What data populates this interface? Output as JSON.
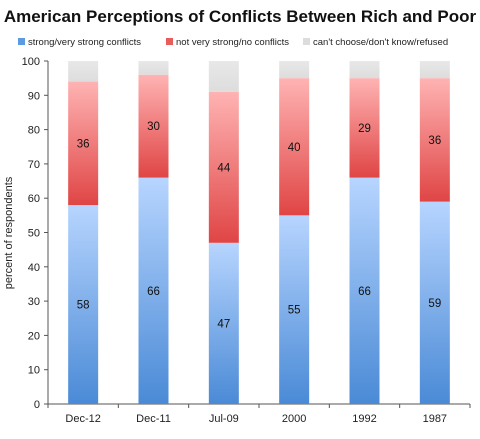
{
  "chart_data": {
    "type": "bar",
    "stacked": true,
    "title": "American Perceptions of Conflicts Between Rich and Poor",
    "xlabel": "",
    "ylabel": "percent of respondents",
    "ylim": [
      0,
      100
    ],
    "yticks": [
      0,
      10,
      20,
      30,
      40,
      50,
      60,
      70,
      80,
      90,
      100
    ],
    "grid": false,
    "legend_position": "top",
    "categories": [
      "Dec-12",
      "Dec-11",
      "Jul-09",
      "2000",
      "1992",
      "1987"
    ],
    "series": [
      {
        "name": "strong/very strong conflicts",
        "values": [
          58,
          66,
          47,
          55,
          66,
          59
        ],
        "labels": [
          "58",
          "66",
          "47",
          "55",
          "66",
          "59"
        ],
        "color": "#5b9be0"
      },
      {
        "name": "not very strong/no conflicts",
        "values": [
          36,
          30,
          44,
          40,
          29,
          36
        ],
        "labels": [
          "36",
          "30",
          "44",
          "40",
          "29",
          "36"
        ],
        "color": "#e85c5c"
      },
      {
        "name": "can't choose/don't know/refused",
        "values": [
          6,
          4,
          9,
          5,
          5,
          5
        ],
        "labels": [
          "",
          "",
          "",
          "",
          "",
          ""
        ],
        "color": "#e3e3e3"
      }
    ]
  }
}
